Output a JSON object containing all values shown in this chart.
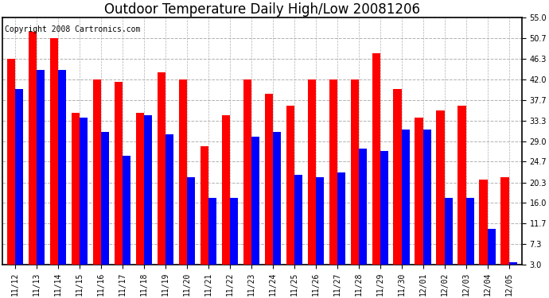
{
  "title": "Outdoor Temperature Daily High/Low 20081206",
  "copyright": "Copyright 2008 Cartronics.com",
  "dates": [
    "11/12",
    "11/13",
    "11/14",
    "11/15",
    "11/16",
    "11/17",
    "11/18",
    "11/19",
    "11/20",
    "11/21",
    "11/22",
    "11/23",
    "11/24",
    "11/25",
    "11/26",
    "11/27",
    "11/28",
    "11/29",
    "11/30",
    "12/01",
    "12/02",
    "12/03",
    "12/04",
    "12/05"
  ],
  "highs": [
    46.3,
    52.0,
    50.7,
    35.0,
    42.0,
    41.5,
    35.0,
    43.5,
    42.0,
    28.0,
    34.5,
    42.0,
    39.0,
    36.5,
    42.0,
    42.0,
    42.0,
    47.5,
    40.0,
    34.0,
    35.5,
    36.5,
    21.0,
    21.5
  ],
  "lows": [
    40.0,
    44.0,
    44.0,
    34.0,
    31.0,
    26.0,
    34.5,
    30.5,
    21.5,
    17.0,
    17.0,
    30.0,
    31.0,
    22.0,
    21.5,
    22.5,
    27.5,
    27.0,
    31.5,
    31.5,
    17.0,
    17.0,
    10.5,
    3.5
  ],
  "yticks": [
    3.0,
    7.3,
    11.7,
    16.0,
    20.3,
    24.7,
    29.0,
    33.3,
    37.7,
    42.0,
    46.3,
    50.7,
    55.0
  ],
  "ymin": 3.0,
  "ymax": 55.0,
  "bar_width": 0.38,
  "high_color": "#ff0000",
  "low_color": "#0000ff",
  "bg_color": "#ffffff",
  "grid_color": "#b0b0b0",
  "title_fontsize": 12,
  "tick_fontsize": 7,
  "copyright_fontsize": 7
}
